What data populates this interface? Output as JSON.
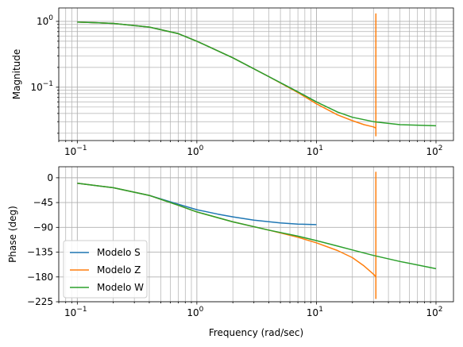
{
  "chart_data": [
    {
      "type": "line",
      "xscale": "log",
      "yscale": "log",
      "xlim": [
        0.07,
        140
      ],
      "ylim": [
        0.0155,
        1.6
      ],
      "xlabel": "",
      "ylabel": "Magnitude",
      "xticks": [
        0.1,
        1,
        10,
        100
      ],
      "yticks": [
        0.1,
        1
      ],
      "grid": true,
      "series": [
        {
          "name": "Modelo S",
          "color": "#1f77b4",
          "x": [
            0.1,
            0.2,
            0.4,
            0.7,
            1,
            2,
            4,
            7,
            10
          ],
          "y": [
            0.98,
            0.93,
            0.82,
            0.65,
            0.5,
            0.28,
            0.145,
            0.085,
            0.06
          ]
        },
        {
          "name": "Modelo Z",
          "color": "#ff7f0e",
          "x": [
            0.1,
            0.2,
            0.4,
            0.7,
            1,
            2,
            4,
            7,
            10,
            15,
            20,
            25,
            30,
            31.4,
            31.4,
            31.4
          ],
          "y": [
            0.98,
            0.93,
            0.82,
            0.65,
            0.5,
            0.28,
            0.145,
            0.083,
            0.056,
            0.038,
            0.031,
            0.027,
            0.025,
            0.024,
            1.3,
            0.018
          ]
        },
        {
          "name": "Modelo W",
          "color": "#2ca02c",
          "x": [
            0.1,
            0.2,
            0.4,
            0.7,
            1,
            2,
            4,
            7,
            10,
            15,
            20,
            30,
            50,
            100
          ],
          "y": [
            0.98,
            0.93,
            0.82,
            0.65,
            0.5,
            0.28,
            0.145,
            0.085,
            0.06,
            0.042,
            0.035,
            0.03,
            0.027,
            0.026
          ]
        }
      ]
    },
    {
      "type": "line",
      "xscale": "log",
      "yscale": "linear",
      "xlim": [
        0.07,
        140
      ],
      "ylim": [
        -225,
        20
      ],
      "xlabel": "Frequency (rad/sec)",
      "ylabel": "Phase (deg)",
      "xticks": [
        0.1,
        1,
        10,
        100
      ],
      "yticks": [
        0,
        -45,
        -90,
        -135,
        -180,
        -225
      ],
      "grid": true,
      "legend": "lower-left",
      "series": [
        {
          "name": "Modelo S",
          "color": "#1f77b4",
          "x": [
            0.1,
            0.2,
            0.4,
            0.7,
            1,
            1.5,
            2,
            3,
            5,
            7,
            10
          ],
          "y": [
            -10,
            -18,
            -32,
            -48,
            -58,
            -66,
            -71,
            -77,
            -82,
            -84,
            -85
          ]
        },
        {
          "name": "Modelo Z",
          "color": "#ff7f0e",
          "x": [
            0.1,
            0.2,
            0.4,
            0.7,
            1,
            2,
            4,
            7,
            10,
            15,
            20,
            25,
            30,
            31.4,
            31.4,
            31.4
          ],
          "y": [
            -10,
            -18,
            -32,
            -50,
            -62,
            -80,
            -95,
            -108,
            -118,
            -132,
            -145,
            -160,
            -175,
            -180,
            10,
            -220
          ]
        },
        {
          "name": "Modelo W",
          "color": "#2ca02c",
          "x": [
            0.1,
            0.2,
            0.4,
            0.7,
            1,
            2,
            4,
            7,
            10,
            15,
            20,
            30,
            50,
            100
          ],
          "y": [
            -10,
            -18,
            -32,
            -50,
            -62,
            -80,
            -95,
            -106,
            -114,
            -124,
            -131,
            -141,
            -152,
            -165
          ]
        }
      ]
    }
  ]
}
